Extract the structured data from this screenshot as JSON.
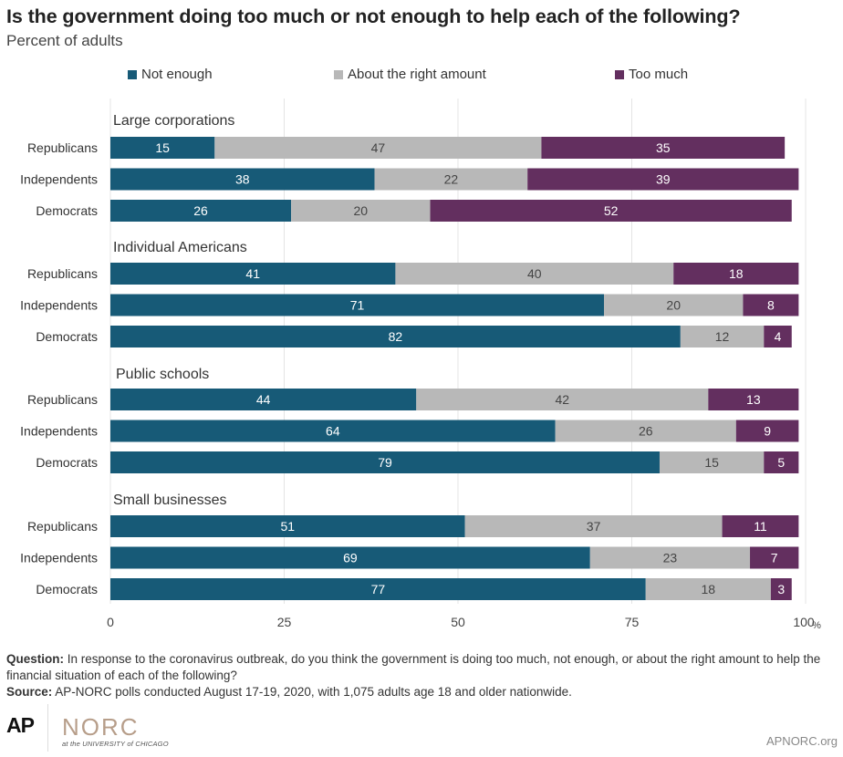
{
  "title": "Is the government doing too much or not enough to help each of the following?",
  "subtitle": "Percent of adults",
  "legend": [
    {
      "label": "Not enough",
      "color": "#175a77"
    },
    {
      "label": "About the right amount",
      "color": "#b8b8b8"
    },
    {
      "label": "Too much",
      "color": "#632f5f"
    }
  ],
  "chart_data": {
    "type": "bar",
    "orientation": "horizontal",
    "stacked": true,
    "xlim": [
      0,
      100
    ],
    "x_ticks": [
      "0",
      "25",
      "50",
      "75",
      "100"
    ],
    "x_unit": "%",
    "grid": true,
    "legend_position": "top",
    "groups": [
      {
        "name": "Large corporations",
        "rows": [
          {
            "label": "Republicans",
            "values": [
              15,
              47,
              35
            ]
          },
          {
            "label": "Independents",
            "values": [
              38,
              22,
              39
            ]
          },
          {
            "label": "Democrats",
            "values": [
              26,
              20,
              52
            ]
          }
        ]
      },
      {
        "name": "Individual Americans",
        "rows": [
          {
            "label": "Republicans",
            "values": [
              41,
              40,
              18
            ]
          },
          {
            "label": "Independents",
            "values": [
              71,
              20,
              8
            ]
          },
          {
            "label": "Democrats",
            "values": [
              82,
              12,
              4
            ]
          }
        ]
      },
      {
        "name": "Public schools",
        "rows": [
          {
            "label": "Republicans",
            "values": [
              44,
              42,
              13
            ]
          },
          {
            "label": "Independents",
            "values": [
              64,
              26,
              9
            ]
          },
          {
            "label": "Democrats",
            "values": [
              79,
              15,
              5
            ]
          }
        ]
      },
      {
        "name": "Small businesses",
        "rows": [
          {
            "label": "Republicans",
            "values": [
              51,
              37,
              11
            ]
          },
          {
            "label": "Independents",
            "values": [
              69,
              23,
              7
            ]
          },
          {
            "label": "Democrats",
            "values": [
              77,
              18,
              3
            ]
          }
        ]
      }
    ],
    "series": [
      {
        "name": "Not enough",
        "color": "#175a77",
        "label_color": "#ffffff"
      },
      {
        "name": "About the right amount",
        "color": "#b8b8b8",
        "label_color": "#444444"
      },
      {
        "name": "Too much",
        "color": "#632f5f",
        "label_color": "#ffffff"
      }
    ]
  },
  "notes": {
    "question_label": "Question:",
    "question_text": " In response to the coronavirus outbreak, do you think the government is doing too much, not enough, or about the right amount to help the financial situation of each of the following?",
    "source_label": "Source:",
    "source_text": " AP-NORC polls conducted August 17-19, 2020, with 1,075 adults age 18 and older nationwide."
  },
  "footer": {
    "ap_logo": "AP",
    "norc_logo": "NORC",
    "norc_sub": "at the UNIVERSITY of CHICAGO",
    "site": "APNORC.org"
  }
}
